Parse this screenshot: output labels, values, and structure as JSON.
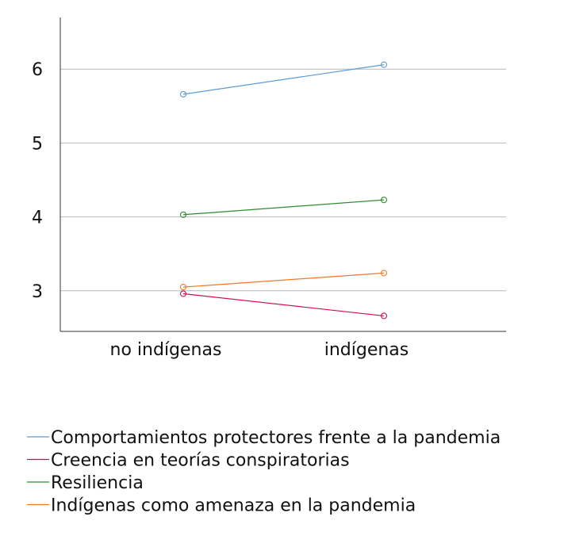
{
  "chart_data": {
    "type": "line",
    "title": "",
    "xlabel": "",
    "ylabel": "",
    "categories": [
      "no indígenas",
      "indígenas"
    ],
    "ylim": [
      2.45,
      6.7
    ],
    "yticks": [
      3,
      4,
      5,
      6
    ],
    "grid": true,
    "legend_position": "bottom",
    "series": [
      {
        "name": "Comportamientos protectores frente a la pandemia",
        "color": "#5b9bd5",
        "values": [
          5.66,
          6.06
        ]
      },
      {
        "name": "Creencia en teorías conspiratorias",
        "color": "#d0104c",
        "values": [
          2.96,
          2.66
        ]
      },
      {
        "name": "Resiliencia",
        "color": "#2e8b2e",
        "values": [
          4.03,
          4.23
        ]
      },
      {
        "name": "Indígenas como amenaza en la pandemia",
        "color": "#f07a2a",
        "values": [
          3.05,
          3.24
        ]
      }
    ]
  }
}
